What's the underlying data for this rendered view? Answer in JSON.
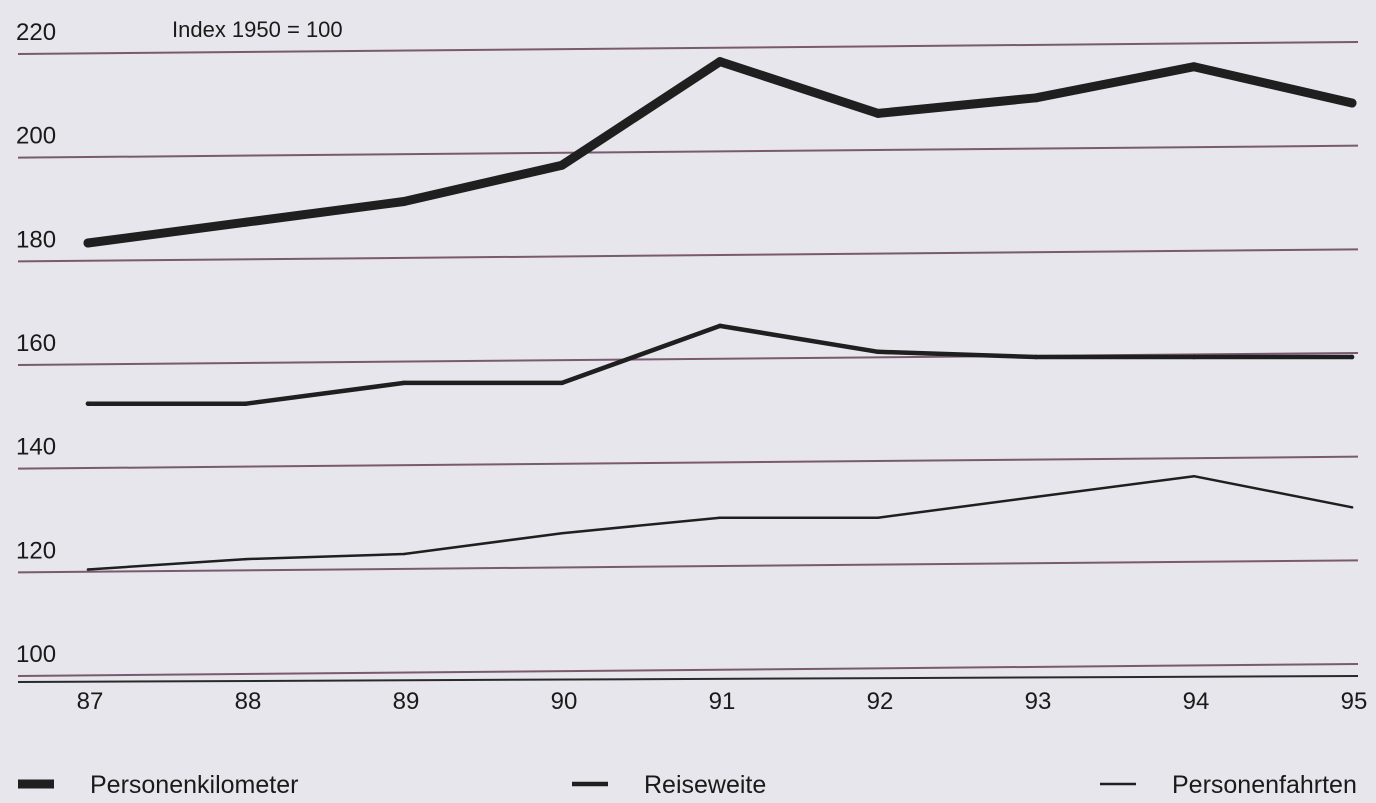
{
  "chart_data": {
    "type": "line",
    "title": "",
    "note": "Index 1950 = 100",
    "xlabel": "",
    "ylabel": "",
    "categories": [
      "87",
      "88",
      "89",
      "90",
      "91",
      "92",
      "93",
      "94",
      "95"
    ],
    "ylim": [
      100,
      220
    ],
    "yticks": [
      "220",
      "200",
      "180",
      "160",
      "140",
      "120",
      "100"
    ],
    "grid": true,
    "legend_position": "bottom",
    "series": [
      {
        "name": "Personenkilometer",
        "style": "thick",
        "values": [
          182,
          186,
          190,
          197,
          217,
          207,
          210,
          216,
          209
        ]
      },
      {
        "name": "Reiseweite",
        "style": "medium",
        "values": [
          151,
          151,
          155,
          155,
          166,
          161,
          160,
          160,
          160
        ]
      },
      {
        "name": "Personenfahrten",
        "style": "thin",
        "values": [
          119,
          121,
          122,
          126,
          129,
          129,
          133,
          137,
          131
        ]
      }
    ],
    "colors": {
      "line": "#1f1f1f",
      "grid": "#7a5a6e",
      "background": "#e7e6ec"
    }
  }
}
